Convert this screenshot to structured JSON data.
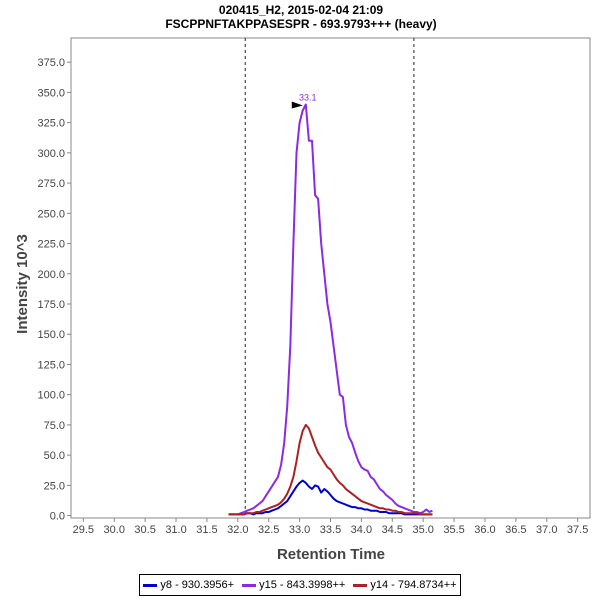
{
  "chart_data": {
    "type": "line",
    "title": "020415_H2, 2015-02-04 21:09",
    "subtitle": "FSCPPNFTAKPPASESPR - 693.9793+++ (heavy)",
    "xlabel": "Retention Time",
    "ylabel": "Intensity 10^3",
    "xlim": [
      29.3,
      37.7
    ],
    "ylim": [
      -2,
      395
    ],
    "x_ticks": [
      29.5,
      30.0,
      30.5,
      31.0,
      31.5,
      32.0,
      32.5,
      33.0,
      33.5,
      34.0,
      34.5,
      35.0,
      35.5,
      36.0,
      36.5,
      37.0,
      37.5
    ],
    "x_tick_labels": [
      "29.5",
      "30.0",
      "30.5",
      "31.0",
      "31.5",
      "32.0",
      "32.5",
      "33.0",
      "33.5",
      "34.0",
      "34.5",
      "35.0",
      "35.5",
      "36.0",
      "36.5",
      "37.0",
      "37.5"
    ],
    "y_ticks": [
      0,
      25,
      50,
      75,
      100,
      125,
      150,
      175,
      200,
      225,
      250,
      275,
      300,
      325,
      350,
      375
    ],
    "y_tick_labels": [
      "0.0",
      "25.0",
      "50.0",
      "75.0",
      "100.0",
      "125.0",
      "150.0",
      "175.0",
      "200.0",
      "225.0",
      "250.0",
      "275.0",
      "300.0",
      "325.0",
      "350.0",
      "375.0"
    ],
    "integration_bounds": [
      32.12,
      34.85
    ],
    "peak_annotation": {
      "label": "33.1",
      "x": 33.1,
      "y": 340
    },
    "legend_position": "bottom",
    "grid": false,
    "series": [
      {
        "name": "y8 - 930.3956+",
        "color": "#0000cc",
        "x": [
          31.85,
          31.9,
          31.95,
          32.0,
          32.05,
          32.1,
          32.15,
          32.2,
          32.25,
          32.3,
          32.35,
          32.4,
          32.45,
          32.5,
          32.55,
          32.6,
          32.65,
          32.7,
          32.75,
          32.8,
          32.85,
          32.9,
          32.95,
          33.0,
          33.05,
          33.1,
          33.15,
          33.2,
          33.25,
          33.3,
          33.35,
          33.4,
          33.45,
          33.5,
          33.55,
          33.6,
          33.65,
          33.7,
          33.75,
          33.8,
          33.85,
          33.9,
          33.95,
          34.0,
          34.05,
          34.1,
          34.15,
          34.2,
          34.25,
          34.3,
          34.35,
          34.4,
          34.45,
          34.5,
          34.55,
          34.6,
          34.65,
          34.7,
          34.75,
          34.8,
          34.85,
          34.9,
          34.95,
          35.0,
          35.05,
          35.1,
          35.15
        ],
        "values": [
          1,
          1,
          1,
          1,
          1,
          1,
          2,
          2,
          1,
          2,
          2,
          2,
          3,
          3,
          4,
          5,
          6,
          8,
          10,
          12,
          16,
          20,
          24,
          27,
          29,
          27,
          24,
          22,
          25,
          24,
          19,
          22,
          20,
          17,
          14,
          12,
          11,
          10,
          9,
          8,
          7,
          7,
          6,
          6,
          5,
          5,
          4,
          4,
          4,
          3,
          3,
          3,
          2,
          2,
          2,
          2,
          2,
          1,
          1,
          1,
          1,
          1,
          1,
          1,
          1,
          1,
          1
        ]
      },
      {
        "name": "y15 - 843.3998++",
        "color": "#8a2be2",
        "x": [
          31.85,
          31.9,
          31.95,
          32.0,
          32.05,
          32.1,
          32.15,
          32.2,
          32.25,
          32.3,
          32.35,
          32.4,
          32.45,
          32.5,
          32.55,
          32.6,
          32.65,
          32.7,
          32.75,
          32.8,
          32.85,
          32.9,
          32.95,
          33.0,
          33.05,
          33.1,
          33.15,
          33.2,
          33.25,
          33.3,
          33.35,
          33.4,
          33.45,
          33.5,
          33.55,
          33.6,
          33.65,
          33.7,
          33.75,
          33.8,
          33.85,
          33.9,
          33.95,
          34.0,
          34.05,
          34.1,
          34.15,
          34.2,
          34.25,
          34.3,
          34.35,
          34.4,
          34.45,
          34.5,
          34.55,
          34.6,
          34.65,
          34.7,
          34.75,
          34.8,
          34.85,
          34.9,
          34.95,
          35.0,
          35.05,
          35.1,
          35.15
        ],
        "values": [
          1,
          1,
          1,
          1,
          2,
          3,
          4,
          5,
          6,
          8,
          10,
          12,
          16,
          20,
          24,
          28,
          32,
          42,
          60,
          90,
          140,
          225,
          300,
          325,
          335,
          340,
          310,
          310,
          265,
          262,
          225,
          200,
          175,
          160,
          140,
          120,
          100,
          98,
          75,
          65,
          60,
          52,
          45,
          40,
          38,
          37,
          32,
          30,
          26,
          22,
          20,
          17,
          15,
          13,
          10,
          8,
          7,
          6,
          5,
          4,
          3,
          3,
          2,
          3,
          5,
          3,
          4
        ]
      },
      {
        "name": "y14 - 794.8734++",
        "color": "#aa2222",
        "x": [
          31.85,
          31.9,
          31.95,
          32.0,
          32.05,
          32.1,
          32.15,
          32.2,
          32.25,
          32.3,
          32.35,
          32.4,
          32.45,
          32.5,
          32.55,
          32.6,
          32.65,
          32.7,
          32.75,
          32.8,
          32.85,
          32.9,
          32.95,
          33.0,
          33.05,
          33.1,
          33.15,
          33.2,
          33.25,
          33.3,
          33.35,
          33.4,
          33.45,
          33.5,
          33.55,
          33.6,
          33.65,
          33.7,
          33.75,
          33.8,
          33.85,
          33.9,
          33.95,
          34.0,
          34.05,
          34.1,
          34.15,
          34.2,
          34.25,
          34.3,
          34.35,
          34.4,
          34.45,
          34.5,
          34.55,
          34.6,
          34.65,
          34.7,
          34.75,
          34.8,
          34.85,
          34.9,
          34.95,
          35.0,
          35.05,
          35.1,
          35.15
        ],
        "values": [
          1,
          1,
          1,
          1,
          1,
          1,
          2,
          2,
          2,
          3,
          3,
          4,
          5,
          6,
          7,
          8,
          9,
          11,
          14,
          18,
          24,
          32,
          45,
          60,
          70,
          75,
          72,
          65,
          58,
          52,
          48,
          44,
          40,
          38,
          34,
          30,
          27,
          25,
          22,
          20,
          18,
          16,
          14,
          12,
          11,
          10,
          9,
          8,
          7,
          6,
          6,
          5,
          5,
          4,
          4,
          3,
          3,
          2,
          2,
          2,
          2,
          2,
          1,
          1,
          1,
          1,
          1
        ]
      }
    ]
  }
}
